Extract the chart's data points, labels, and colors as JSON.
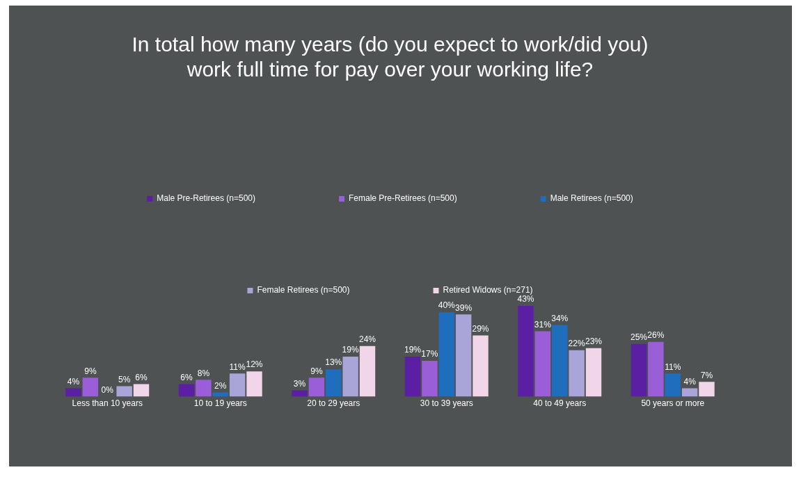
{
  "chart_data": {
    "type": "bar",
    "title": [
      "In total how many years (do you expect to work/did you)",
      "work full time for pay over your working life?"
    ],
    "categories": [
      "Less than 10 years",
      "10 to 19 years",
      "20 to 29 years",
      "30 to 39 years",
      "40 to 49 years",
      "50 years or more"
    ],
    "series": [
      {
        "name": "Male Pre-Retirees (n=500)",
        "color": "#5a1fa3",
        "values": [
          4,
          6,
          3,
          19,
          43,
          25
        ],
        "value_labels": [
          "4%",
          "6%",
          "3%",
          "19%",
          "43%",
          "25%"
        ]
      },
      {
        "name": "Female Pre-Retirees (n=500)",
        "color": "#9a5fd8",
        "values": [
          9,
          8,
          9,
          17,
          31,
          26
        ],
        "value_labels": [
          "9%",
          "8%",
          "9%",
          "17%",
          "31%",
          "26%"
        ]
      },
      {
        "name": "Male Retirees (n=500)",
        "color": "#1f6dbd",
        "values": [
          0,
          2,
          13,
          40,
          34,
          11
        ],
        "value_labels": [
          "0%",
          "2%",
          "13%",
          "40%",
          "34%",
          "11%"
        ]
      },
      {
        "name": "Female Retirees (n=500)",
        "color": "#a9a5d8",
        "values": [
          5,
          11,
          19,
          39,
          22,
          4
        ],
        "value_labels": [
          "5%",
          "11%",
          "19%",
          "39%",
          "22%",
          "4%"
        ]
      },
      {
        "name": "Retired Widows (n=271)",
        "color": "#f0d6e8",
        "values": [
          6,
          12,
          24,
          29,
          23,
          7
        ],
        "value_labels": [
          "6%",
          "12%",
          "24%",
          "29%",
          "23%",
          "7%"
        ]
      }
    ],
    "legend": "top",
    "grid": false
  }
}
